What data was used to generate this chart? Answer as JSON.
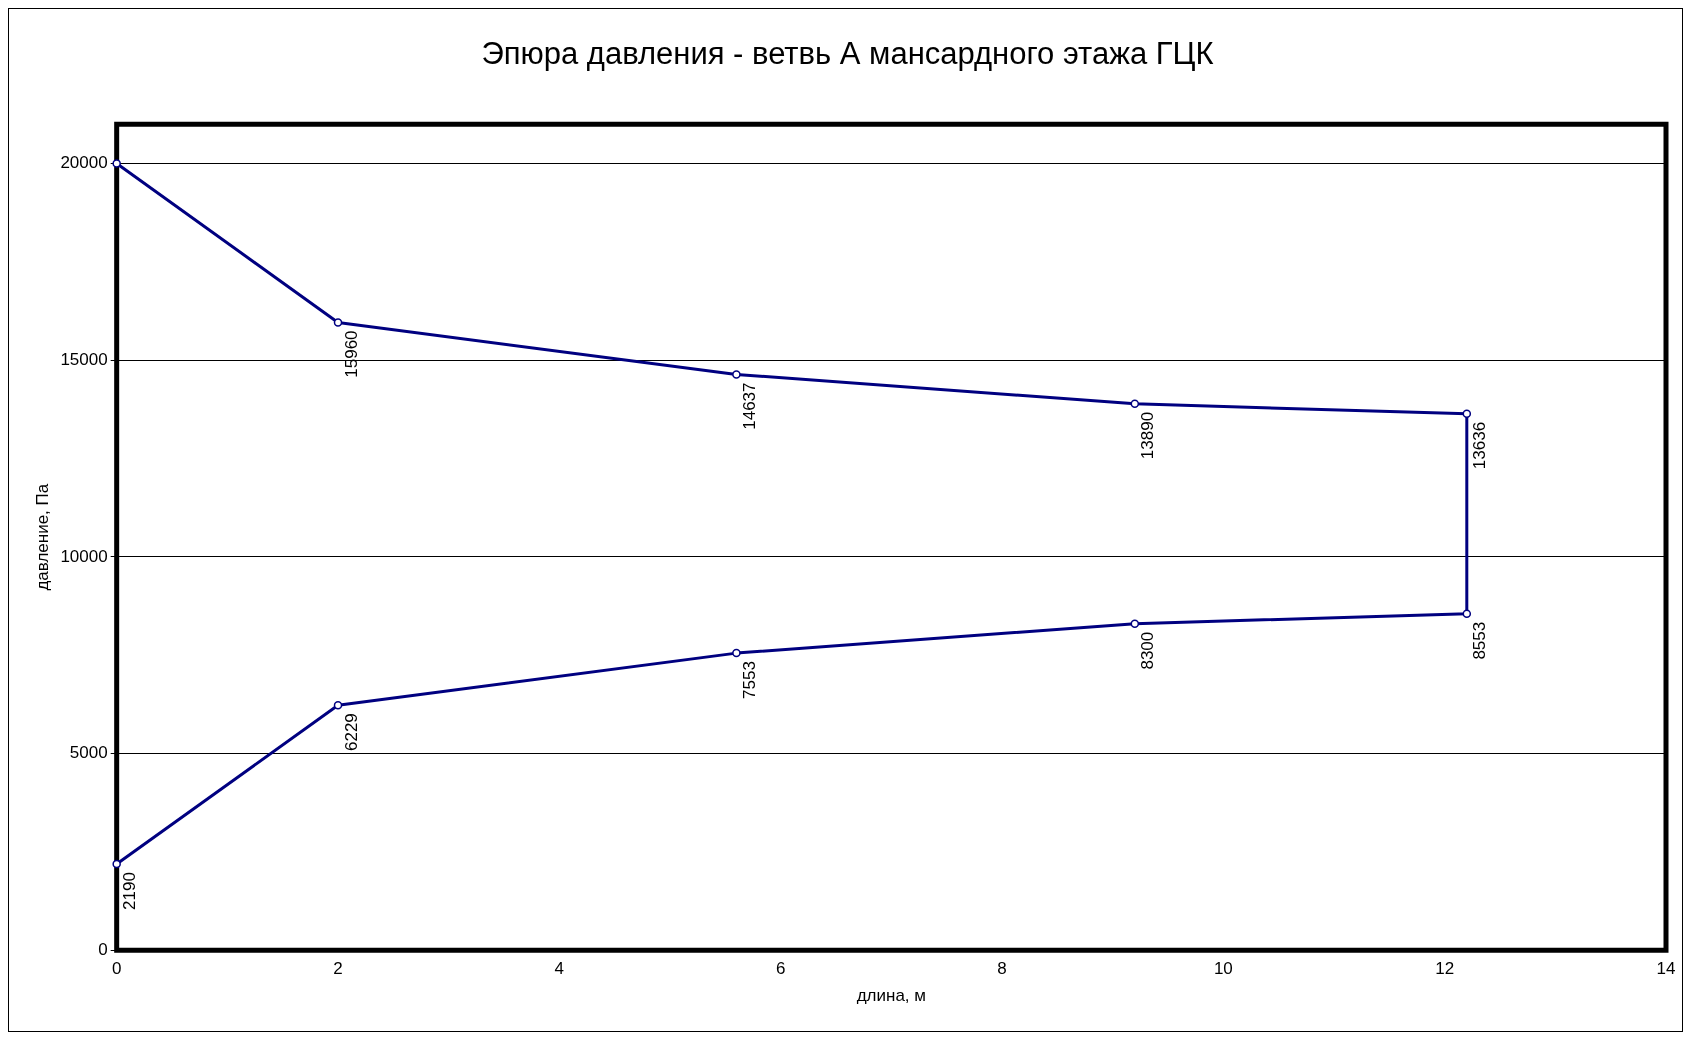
{
  "chart_data": {
    "type": "line",
    "title": "Эпюра давления - ветвь А мансардного этажа ГЦК",
    "xlabel": "длина, м",
    "ylabel": "давление, Па",
    "series": [
      {
        "color": "#000080",
        "x": [
          0,
          2,
          5.6,
          9.2,
          12.2,
          12.2,
          9.2,
          5.6,
          2,
          0
        ],
        "values": [
          20000,
          15960,
          14637,
          13890,
          13636,
          8553,
          8300,
          7553,
          6229,
          2190
        ],
        "value_labels": [
          null,
          "15960",
          "14637",
          "13890",
          "13636",
          "8553",
          "8300",
          "7553",
          "6229",
          "2190"
        ]
      }
    ],
    "xlim": [
      0,
      14
    ],
    "xticks": [
      0,
      2,
      4,
      6,
      8,
      10,
      12,
      14
    ],
    "ylim": [
      0,
      21000
    ],
    "yticks": [
      0,
      5000,
      10000,
      15000,
      20000
    ],
    "grid": "y",
    "legend": false,
    "marker": "circle",
    "line_style": "solid"
  }
}
